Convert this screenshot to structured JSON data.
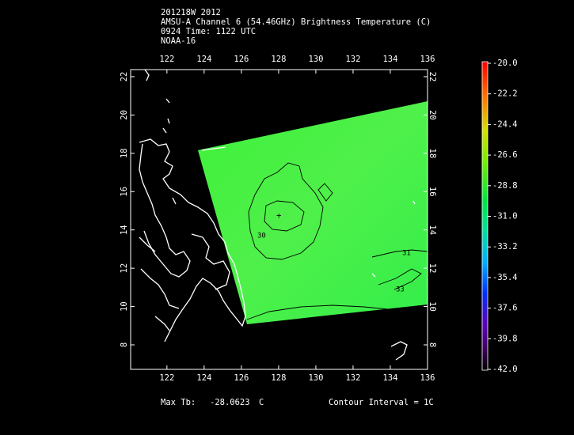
{
  "header": {
    "lines": [
      "201218W 2012",
      "AMSU-A Channel 6 (54.46GHz) Brightness Temperature (C)",
      "0924 Time: 1122 UTC",
      "NOAA-16"
    ]
  },
  "map": {
    "xlim": [
      120.05,
      136
    ],
    "ylim": [
      6.72,
      22.37
    ],
    "lon_ticks": [
      122,
      124,
      126,
      128,
      130,
      132,
      134,
      136
    ],
    "lat_ticks": [
      8,
      10,
      12,
      14,
      16,
      18,
      20,
      22
    ],
    "contour_labels": [
      "30",
      "31",
      "33"
    ]
  },
  "colorbar": {
    "range": [
      -42,
      -20
    ],
    "ticks": [
      {
        "value": -20,
        "label": "-20.0"
      },
      -22.2,
      -24.4,
      -26.6,
      -28.8,
      {
        "value": -31,
        "label": "-31.0"
      },
      -33.2,
      -35.4,
      -37.6,
      -39.8,
      {
        "value": -42,
        "label": "-42.0"
      }
    ]
  },
  "footer": {
    "max_label": "Max Tb:",
    "max_value": -28.0623,
    "max_unit": "C",
    "contour_interval": "Contour Interval = 1C"
  }
}
